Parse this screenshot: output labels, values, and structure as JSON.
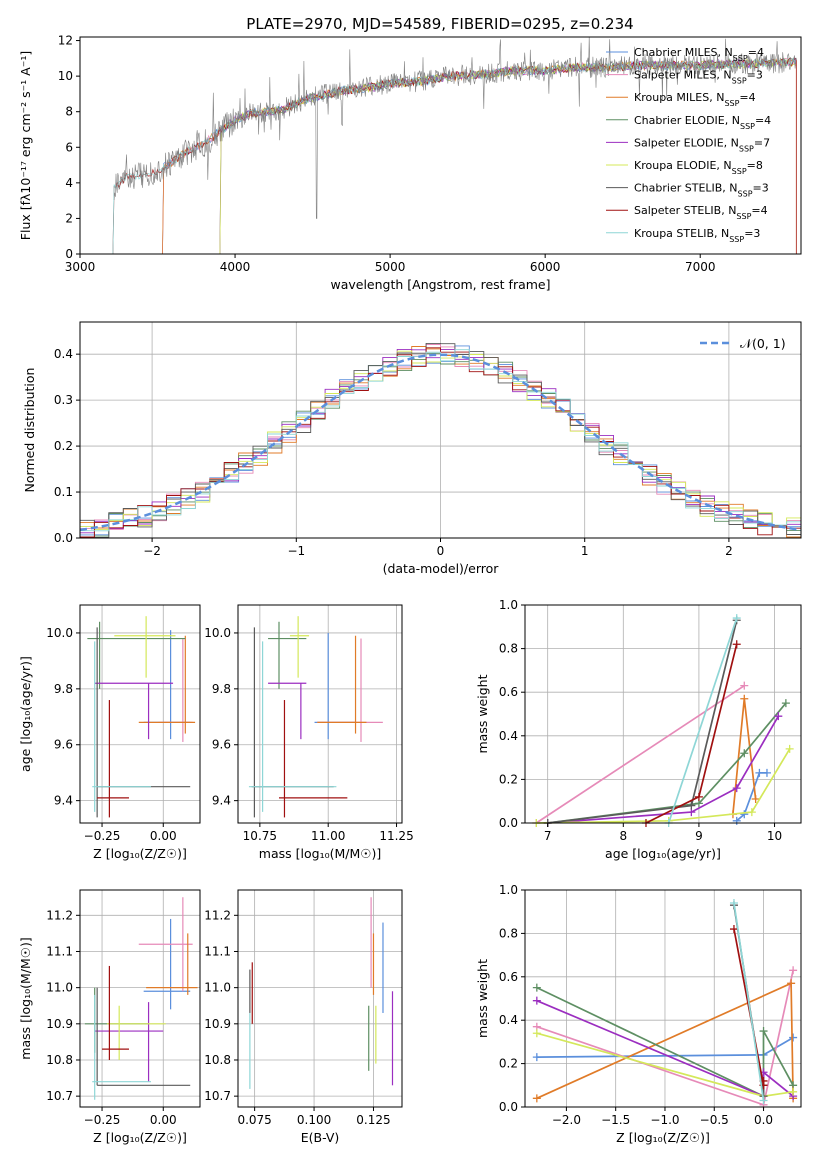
{
  "colors": {
    "blue": "#5b8fdc",
    "pink": "#e68ab8",
    "orange": "#e07b28",
    "green": "#5e8f63",
    "purple": "#9b2ec0",
    "yellow": "#d4e85a",
    "gray": "#5a5a5a",
    "red": "#a01010",
    "cyan": "#8ed6d6"
  },
  "chart_data": [
    {
      "id": "spectrum",
      "type": "line",
      "title": "PLATE=2970, MJD=54589, FIBERID=0295, z=0.234",
      "xlabel": "wavelength [Angstrom, rest frame]",
      "ylabel": "Flux [fλ10⁻¹⁷ erg cm⁻² s⁻¹ A⁻¹]",
      "xlim": [
        3000,
        7650
      ],
      "ylim": [
        0,
        12.2
      ],
      "xticks": [
        "3000",
        "4000",
        "5000",
        "6000",
        "7000"
      ],
      "xtick_values": [
        3000,
        4000,
        5000,
        6000,
        7000
      ],
      "yticks": [
        "0",
        "2",
        "4",
        "6",
        "8",
        "10",
        "12"
      ],
      "ytick_values": [
        0,
        2,
        4,
        6,
        8,
        10,
        12
      ],
      "legend_position": "upper-right",
      "continuum": {
        "x": [
          3210,
          3300,
          3400,
          3500,
          3600,
          3700,
          3800,
          3900,
          4000,
          4100,
          4200,
          4300,
          4400,
          4500,
          4600,
          4700,
          4800,
          4900,
          5000,
          5200,
          5400,
          5600,
          5800,
          6000,
          6200,
          6400,
          6600,
          6800,
          7000,
          7200,
          7400,
          7600
        ],
        "y": [
          3.7,
          4.3,
          4.5,
          4.7,
          5.2,
          5.8,
          6.2,
          6.9,
          7.5,
          7.9,
          8.0,
          8.1,
          8.5,
          8.8,
          9.0,
          9.2,
          9.3,
          9.4,
          9.6,
          9.7,
          10.0,
          10.1,
          10.3,
          10.3,
          10.5,
          10.5,
          10.6,
          10.6,
          10.6,
          10.7,
          10.7,
          10.8
        ]
      },
      "series": [
        {
          "name": "Chabrier MILES, N",
          "sub": "SSP",
          "suffix": "=4",
          "color": "blue",
          "start": 3540
        },
        {
          "name": "Salpeter MILES, N",
          "sub": "SSP",
          "suffix": "=3",
          "color": "pink",
          "start": 3540
        },
        {
          "name": "Kroupa MILES, N",
          "sub": "SSP",
          "suffix": "=4",
          "color": "orange",
          "start": 3540
        },
        {
          "name": "Chabrier ELODIE, N",
          "sub": "SSP",
          "suffix": "=4",
          "color": "green",
          "start": 3910
        },
        {
          "name": "Salpeter ELODIE, N",
          "sub": "SSP",
          "suffix": "=7",
          "color": "purple",
          "start": 3910
        },
        {
          "name": "Kroupa ELODIE, N",
          "sub": "SSP",
          "suffix": "=8",
          "color": "yellow",
          "start": 3910
        },
        {
          "name": "Chabrier STELIB, N",
          "sub": "SSP",
          "suffix": "=3",
          "color": "gray",
          "start": 3220
        },
        {
          "name": "Salpeter STELIB, N",
          "sub": "SSP",
          "suffix": "=4",
          "color": "red",
          "start": 3220
        },
        {
          "name": "Kroupa STELIB, N",
          "sub": "SSP",
          "suffix": "=3",
          "color": "cyan",
          "start": 3220
        }
      ]
    },
    {
      "id": "residuals",
      "type": "line",
      "xlabel": "(data-model)/error",
      "ylabel": "Normed distribution",
      "xlim": [
        -2.5,
        2.5
      ],
      "ylim": [
        0,
        0.47
      ],
      "xticks": [
        "−2",
        "−1",
        "0",
        "1",
        "2"
      ],
      "xtick_values": [
        -2,
        -1,
        0,
        1,
        2
      ],
      "yticks": [
        "0.0",
        "0.1",
        "0.2",
        "0.3",
        "0.4"
      ],
      "ytick_values": [
        0,
        0.1,
        0.2,
        0.3,
        0.4
      ],
      "grid": true,
      "legend_position": "upper-right",
      "reference": {
        "name": "𝒩(0, 1)",
        "color": "blue",
        "style": "dashed"
      },
      "bin_width": 0.1
    },
    {
      "id": "z-age",
      "type": "scatter",
      "xlabel": "Z [log₁₀(Z/Z☉)]",
      "ylabel": "age  [log₁₀(age/yr)]",
      "xlim": [
        -0.34,
        0.15
      ],
      "ylim": [
        9.32,
        10.1
      ],
      "xticks": [
        "−0.25",
        "0.00"
      ],
      "xtick_values": [
        -0.25,
        0.0
      ],
      "yticks": [
        "9.4",
        "9.6",
        "9.8",
        "10.0"
      ],
      "ytick_values": [
        9.4,
        9.6,
        9.8,
        10.0
      ],
      "grid": true,
      "points": [
        {
          "color": "blue",
          "x": 0.03,
          "y": 9.68,
          "xlo": -0.08,
          "xhi": 0.11,
          "ylo": 9.62,
          "yhi": 10.01
        },
        {
          "color": "pink",
          "x": 0.08,
          "y": 9.68,
          "xlo": -0.02,
          "xhi": 0.12,
          "ylo": 9.61,
          "yhi": 9.98
        },
        {
          "color": "orange",
          "x": 0.09,
          "y": 9.68,
          "xlo": -0.1,
          "xhi": 0.13,
          "ylo": 9.64,
          "yhi": 9.99
        },
        {
          "color": "green",
          "x": -0.26,
          "y": 9.98,
          "xlo": -0.31,
          "xhi": 0.09,
          "ylo": 9.8,
          "yhi": 10.04
        },
        {
          "color": "purple",
          "x": -0.06,
          "y": 9.82,
          "xlo": -0.28,
          "xhi": 0.04,
          "ylo": 9.62,
          "yhi": 9.82
        },
        {
          "color": "yellow",
          "x": -0.07,
          "y": 9.99,
          "xlo": -0.2,
          "xhi": 0.05,
          "ylo": 9.84,
          "yhi": 10.06
        },
        {
          "color": "gray",
          "x": -0.27,
          "y": 9.45,
          "xlo": -0.27,
          "xhi": 0.11,
          "ylo": 9.34,
          "yhi": 10.02
        },
        {
          "color": "red",
          "x": -0.22,
          "y": 9.41,
          "xlo": -0.27,
          "xhi": -0.14,
          "ylo": 9.34,
          "yhi": 9.76
        },
        {
          "color": "cyan",
          "x": -0.28,
          "y": 9.45,
          "xlo": -0.29,
          "xhi": -0.05,
          "ylo": 9.36,
          "yhi": 9.97
        }
      ]
    },
    {
      "id": "mass-age",
      "type": "scatter",
      "xlabel": "mass [log₁₀(M/M☉)]",
      "ylabel": "",
      "xlim": [
        10.67,
        11.27
      ],
      "ylim": [
        9.32,
        10.1
      ],
      "xticks": [
        "10.75",
        "11.00",
        "11.25"
      ],
      "xtick_values": [
        10.75,
        11.0,
        11.25
      ],
      "yticks": [
        "9.4",
        "9.6",
        "9.8",
        "10.0"
      ],
      "ytick_values": [
        9.4,
        9.6,
        9.8,
        10.0
      ],
      "grid": true,
      "points": [
        {
          "color": "blue",
          "x": 11.0,
          "y": 9.68,
          "xlo": 10.95,
          "xhi": 11.1,
          "ylo": 9.62,
          "yhi": 10.0
        },
        {
          "color": "pink",
          "x": 11.12,
          "y": 9.68,
          "xlo": 10.96,
          "xhi": 11.2,
          "ylo": 9.61,
          "yhi": 9.98
        },
        {
          "color": "orange",
          "x": 11.1,
          "y": 9.68,
          "xlo": 10.96,
          "xhi": 11.14,
          "ylo": 9.64,
          "yhi": 9.99
        },
        {
          "color": "green",
          "x": 10.82,
          "y": 9.98,
          "xlo": 10.78,
          "xhi": 10.92,
          "ylo": 9.8,
          "yhi": 10.04
        },
        {
          "color": "purple",
          "x": 10.9,
          "y": 9.82,
          "xlo": 10.78,
          "xhi": 10.92,
          "ylo": 9.62,
          "yhi": 9.82
        },
        {
          "color": "yellow",
          "x": 10.89,
          "y": 9.99,
          "xlo": 10.86,
          "xhi": 10.93,
          "ylo": 9.84,
          "yhi": 10.06
        },
        {
          "color": "gray",
          "x": 10.73,
          "y": 9.45,
          "xlo": 10.72,
          "xhi": 11.02,
          "ylo": 9.34,
          "yhi": 10.02
        },
        {
          "color": "red",
          "x": 10.84,
          "y": 9.41,
          "xlo": 10.82,
          "xhi": 11.07,
          "ylo": 9.34,
          "yhi": 9.76
        },
        {
          "color": "cyan",
          "x": 10.76,
          "y": 9.45,
          "xlo": 10.71,
          "xhi": 11.03,
          "ylo": 9.36,
          "yhi": 9.97
        }
      ]
    },
    {
      "id": "age-weight",
      "type": "line",
      "xlabel": "age  [log₁₀(age/yr)]",
      "ylabel": "mass weight",
      "xlim": [
        6.7,
        10.35
      ],
      "ylim": [
        0,
        1.0
      ],
      "xticks": [
        "7",
        "8",
        "9",
        "10"
      ],
      "xtick_values": [
        7,
        8,
        9,
        10
      ],
      "yticks": [
        "0.0",
        "0.2",
        "0.4",
        "0.6",
        "0.8",
        "1.0"
      ],
      "ytick_values": [
        0,
        0.2,
        0.4,
        0.6,
        0.8,
        1.0
      ],
      "grid": true,
      "series": [
        {
          "color": "blue",
          "x": [
            9.5,
            9.6,
            9.8,
            9.9
          ],
          "y": [
            0.01,
            0.04,
            0.23,
            0.23
          ]
        },
        {
          "color": "pink",
          "x": [
            6.85,
            9.6
          ],
          "y": [
            0.0,
            0.63
          ]
        },
        {
          "color": "orange",
          "x": [
            9.45,
            9.6,
            9.75
          ],
          "y": [
            0.04,
            0.57,
            0.11
          ]
        },
        {
          "color": "green",
          "x": [
            7.0,
            9.0,
            9.6,
            10.15
          ],
          "y": [
            0.0,
            0.09,
            0.32,
            0.55
          ]
        },
        {
          "color": "purple",
          "x": [
            7.0,
            8.9,
            9.5,
            10.05
          ],
          "y": [
            0.0,
            0.05,
            0.16,
            0.49
          ]
        },
        {
          "color": "yellow",
          "x": [
            6.85,
            8.6,
            9.7,
            10.2
          ],
          "y": [
            0.0,
            0.01,
            0.05,
            0.34
          ]
        },
        {
          "color": "gray",
          "x": [
            7.0,
            8.9,
            9.5
          ],
          "y": [
            0.0,
            0.08,
            0.93
          ]
        },
        {
          "color": "red",
          "x": [
            8.3,
            9.0,
            9.5
          ],
          "y": [
            0.0,
            0.12,
            0.82
          ]
        },
        {
          "color": "cyan",
          "x": [
            8.6,
            9.5
          ],
          "y": [
            0.0,
            0.94
          ]
        }
      ]
    },
    {
      "id": "z-mass",
      "type": "scatter",
      "xlabel": "Z [log₁₀(Z/Z☉)]",
      "ylabel": "mass [log₁₀(M/M☉)]",
      "xlim": [
        -0.34,
        0.15
      ],
      "ylim": [
        10.67,
        11.27
      ],
      "xticks": [
        "−0.25",
        "0.00"
      ],
      "xtick_values": [
        -0.25,
        0.0
      ],
      "yticks": [
        "10.7",
        "10.8",
        "10.9",
        "11.0",
        "11.1",
        "11.2"
      ],
      "ytick_values": [
        10.7,
        10.8,
        10.9,
        11.0,
        11.1,
        11.2
      ],
      "grid": true,
      "points": [
        {
          "color": "blue",
          "x": 0.03,
          "y": 10.99,
          "xlo": -0.08,
          "xhi": 0.11,
          "ylo": 10.94,
          "yhi": 11.19
        },
        {
          "color": "pink",
          "x": 0.08,
          "y": 11.12,
          "xlo": -0.1,
          "xhi": 0.12,
          "ylo": 10.99,
          "yhi": 11.25
        },
        {
          "color": "orange",
          "x": 0.1,
          "y": 11.0,
          "xlo": -0.07,
          "xhi": 0.14,
          "ylo": 10.98,
          "yhi": 11.15
        },
        {
          "color": "green",
          "x": -0.28,
          "y": 10.9,
          "xlo": -0.32,
          "xhi": -0.06,
          "ylo": 10.82,
          "yhi": 11.0
        },
        {
          "color": "purple",
          "x": -0.06,
          "y": 10.88,
          "xlo": -0.28,
          "xhi": 0.0,
          "ylo": 10.74,
          "yhi": 10.96
        },
        {
          "color": "yellow",
          "x": -0.18,
          "y": 10.9,
          "xlo": -0.23,
          "xhi": 0.01,
          "ylo": 10.8,
          "yhi": 10.95
        },
        {
          "color": "gray",
          "x": -0.27,
          "y": 10.73,
          "xlo": -0.27,
          "xhi": 0.11,
          "ylo": 10.73,
          "yhi": 11.0
        },
        {
          "color": "red",
          "x": -0.22,
          "y": 10.83,
          "xlo": -0.25,
          "xhi": -0.14,
          "ylo": 10.8,
          "yhi": 11.06
        },
        {
          "color": "cyan",
          "x": -0.28,
          "y": 10.74,
          "xlo": -0.29,
          "xhi": -0.05,
          "ylo": 10.69,
          "yhi": 10.98
        }
      ]
    },
    {
      "id": "ebv-mass",
      "type": "scatter",
      "xlabel": "E(B-V)",
      "ylabel": "",
      "xlim": [
        0.068,
        0.137
      ],
      "ylim": [
        10.67,
        11.27
      ],
      "xticks": [
        "0.075",
        "0.100",
        "0.125"
      ],
      "xtick_values": [
        0.075,
        0.1,
        0.125
      ],
      "yticks": [
        "10.7",
        "10.8",
        "10.9",
        "11.0",
        "11.1",
        "11.2"
      ],
      "ytick_values": [
        10.7,
        10.8,
        10.9,
        11.0,
        11.1,
        11.2
      ],
      "grid": true,
      "points": [
        {
          "color": "blue",
          "x": 0.129,
          "y": 11.0,
          "xlo": 0.129,
          "xhi": 0.129,
          "ylo": 10.93,
          "yhi": 11.18
        },
        {
          "color": "pink",
          "x": 0.124,
          "y": 11.12,
          "xlo": 0.124,
          "xhi": 0.124,
          "ylo": 11.0,
          "yhi": 11.25
        },
        {
          "color": "orange",
          "x": 0.125,
          "y": 11.0,
          "xlo": 0.125,
          "xhi": 0.125,
          "ylo": 10.98,
          "yhi": 11.15
        },
        {
          "color": "green",
          "x": 0.123,
          "y": 10.88,
          "xlo": 0.123,
          "xhi": 0.123,
          "ylo": 10.77,
          "yhi": 10.95
        },
        {
          "color": "purple",
          "x": 0.133,
          "y": 10.88,
          "xlo": 0.133,
          "xhi": 0.133,
          "ylo": 10.73,
          "yhi": 10.99
        },
        {
          "color": "yellow",
          "x": 0.126,
          "y": 10.88,
          "xlo": 0.126,
          "xhi": 0.126,
          "ylo": 10.79,
          "yhi": 10.95
        },
        {
          "color": "gray",
          "x": 0.073,
          "y": 10.99,
          "xlo": 0.073,
          "xhi": 0.073,
          "ylo": 10.93,
          "yhi": 11.05
        },
        {
          "color": "red",
          "x": 0.074,
          "y": 10.99,
          "xlo": 0.074,
          "xhi": 0.074,
          "ylo": 10.9,
          "yhi": 11.07
        },
        {
          "color": "cyan",
          "x": 0.073,
          "y": 10.8,
          "xlo": 0.073,
          "xhi": 0.073,
          "ylo": 10.72,
          "yhi": 10.93
        }
      ]
    },
    {
      "id": "z-weight",
      "type": "line",
      "xlabel": "Z [log₁₀(Z/Z☉)]",
      "ylabel": "mass weight",
      "xlim": [
        -2.42,
        0.38
      ],
      "ylim": [
        0,
        1.0
      ],
      "xticks": [
        "−2.0",
        "−1.5",
        "−1.0",
        "−0.5",
        "0.0"
      ],
      "xtick_values": [
        -2.0,
        -1.5,
        -1.0,
        -0.5,
        0.0
      ],
      "yticks": [
        "0.0",
        "0.2",
        "0.4",
        "0.6",
        "0.8",
        "1.0"
      ],
      "ytick_values": [
        0,
        0.2,
        0.4,
        0.6,
        0.8,
        1.0
      ],
      "grid": true,
      "series": [
        {
          "color": "blue",
          "x": [
            -2.3,
            0.0,
            0.3
          ],
          "y": [
            0.23,
            0.24,
            0.32
          ]
        },
        {
          "color": "pink",
          "x": [
            -2.3,
            0.0,
            0.3
          ],
          "y": [
            0.37,
            0.01,
            0.63
          ]
        },
        {
          "color": "orange",
          "x": [
            -2.3,
            0.28,
            0.3
          ],
          "y": [
            0.04,
            0.57,
            0.04
          ]
        },
        {
          "color": "green",
          "x": [
            -2.3,
            0.0,
            0.0,
            0.3
          ],
          "y": [
            0.55,
            0.05,
            0.35,
            0.1
          ]
        },
        {
          "color": "purple",
          "x": [
            -2.3,
            0.0,
            0.0,
            0.3
          ],
          "y": [
            0.49,
            0.05,
            0.16,
            0.05
          ]
        },
        {
          "color": "yellow",
          "x": [
            -2.3,
            0.0,
            0.3
          ],
          "y": [
            0.34,
            0.05,
            0.07
          ]
        },
        {
          "color": "gray",
          "x": [
            -0.3,
            0.0,
            0.0
          ],
          "y": [
            0.93,
            0.05,
            0.1
          ]
        },
        {
          "color": "red",
          "x": [
            -0.3,
            0.0,
            0.0
          ],
          "y": [
            0.82,
            0.1,
            0.12
          ]
        },
        {
          "color": "cyan",
          "x": [
            -0.3,
            0.0
          ],
          "y": [
            0.94,
            0.03
          ]
        }
      ]
    }
  ]
}
